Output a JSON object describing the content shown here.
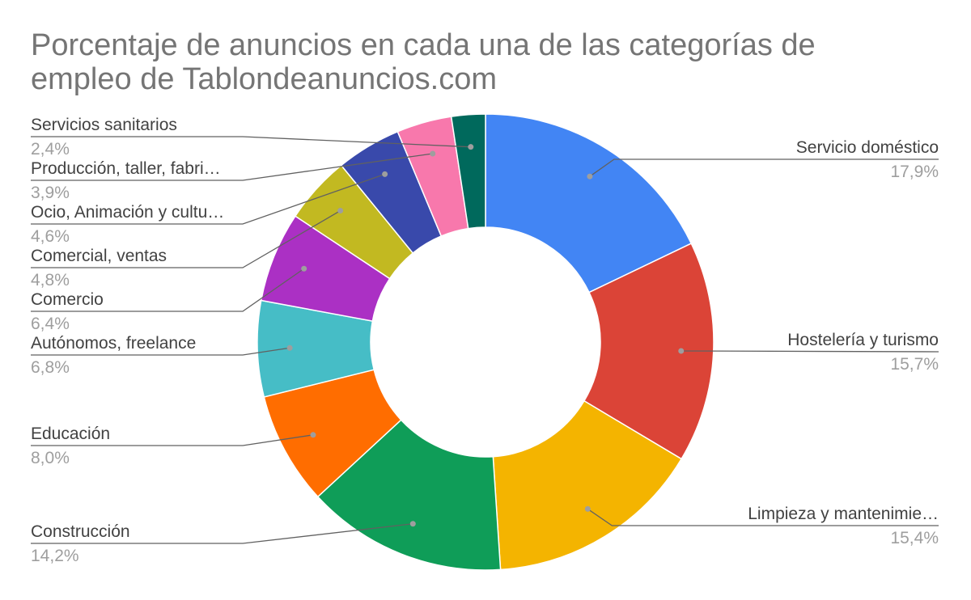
{
  "chart_data": {
    "type": "pie",
    "donut": true,
    "title_lines": [
      "Porcentaje de anuncios en cada una de las categorías de",
      "empleo de Tablondeanuncios.com"
    ],
    "slices": [
      {
        "label": "Servicio doméstico",
        "value": 17.9,
        "display": "17,9%",
        "color": "#4285f4"
      },
      {
        "label": "Hostelería y turismo",
        "value": 15.7,
        "display": "15,7%",
        "color": "#db4437"
      },
      {
        "label": "Limpieza y mantenimie…",
        "value": 15.4,
        "display": "15,4%",
        "color": "#f4b400"
      },
      {
        "label": "Construcción",
        "value": 14.2,
        "display": "14,2%",
        "color": "#0f9d58"
      },
      {
        "label": "Educación",
        "value": 8.0,
        "display": "8,0%",
        "color": "#ff6d00"
      },
      {
        "label": "Autónomos, freelance",
        "value": 6.8,
        "display": "6,8%",
        "color": "#46bdc6"
      },
      {
        "label": "Comercio",
        "value": 6.4,
        "display": "6,4%",
        "color": "#ab30c4"
      },
      {
        "label": "Comercial, ventas",
        "value": 4.8,
        "display": "4,8%",
        "color": "#c2b921"
      },
      {
        "label": "Ocio, Animación y cultu…",
        "value": 4.6,
        "display": "4,6%",
        "color": "#3949ab"
      },
      {
        "label": "Producción, taller, fabri…",
        "value": 3.9,
        "display": "3,9%",
        "color": "#f878ac"
      },
      {
        "label": "Servicios sanitarios",
        "value": 2.4,
        "display": "2,4%",
        "color": "#00695c"
      }
    ]
  }
}
